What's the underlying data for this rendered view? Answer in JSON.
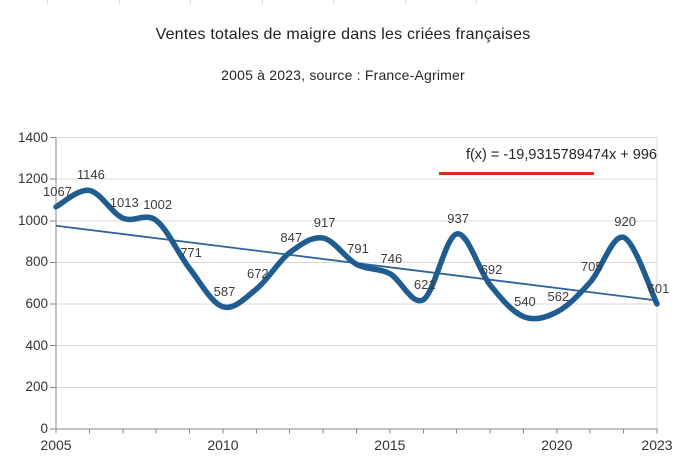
{
  "title": "Ventes totales de maigre dans les criées françaises",
  "subtitle": "2005 à 2023, source : France-Agrimer",
  "trend_equation": "f(x) = -19,9315789474x + 996",
  "colors": {
    "curve": "#1f5c8f",
    "trendline": "#31639c",
    "grid": "#d9d9d9",
    "axis": "#8a8a8a",
    "equation_underline": "#e02820",
    "data_label": "#3d3d3d"
  },
  "chart_data": {
    "type": "line",
    "smooth": true,
    "grid": true,
    "legend": "none",
    "title": "Ventes totales de maigre dans les criées françaises",
    "subtitle": "2005 à 2023, source : France-Agrimer",
    "x": [
      2005,
      2006,
      2007,
      2008,
      2009,
      2010,
      2011,
      2012,
      2013,
      2014,
      2015,
      2016,
      2017,
      2018,
      2019,
      2020,
      2021,
      2022,
      2023
    ],
    "values": [
      1067,
      1146,
      1013,
      1002,
      771,
      587,
      672,
      847,
      917,
      791,
      746,
      621,
      937,
      692,
      540,
      562,
      705,
      920,
      601
    ],
    "point_labels_shown": true,
    "ylim": [
      0,
      1400
    ],
    "ytick_step": 200,
    "yticks": [
      "0",
      "200",
      "400",
      "600",
      "800",
      "1000",
      "1200",
      "1400"
    ],
    "xticks_labeled": [
      "2005",
      "2010",
      "2015",
      "2020",
      "2023"
    ],
    "xticks_labeled_years": [
      2005,
      2010,
      2015,
      2020,
      2023
    ],
    "trendline": {
      "label": "f(x) = -19,9315789474x + 996",
      "slope": -19.9315789474,
      "intercept": 996,
      "x_index_of_first_year": 1
    }
  }
}
